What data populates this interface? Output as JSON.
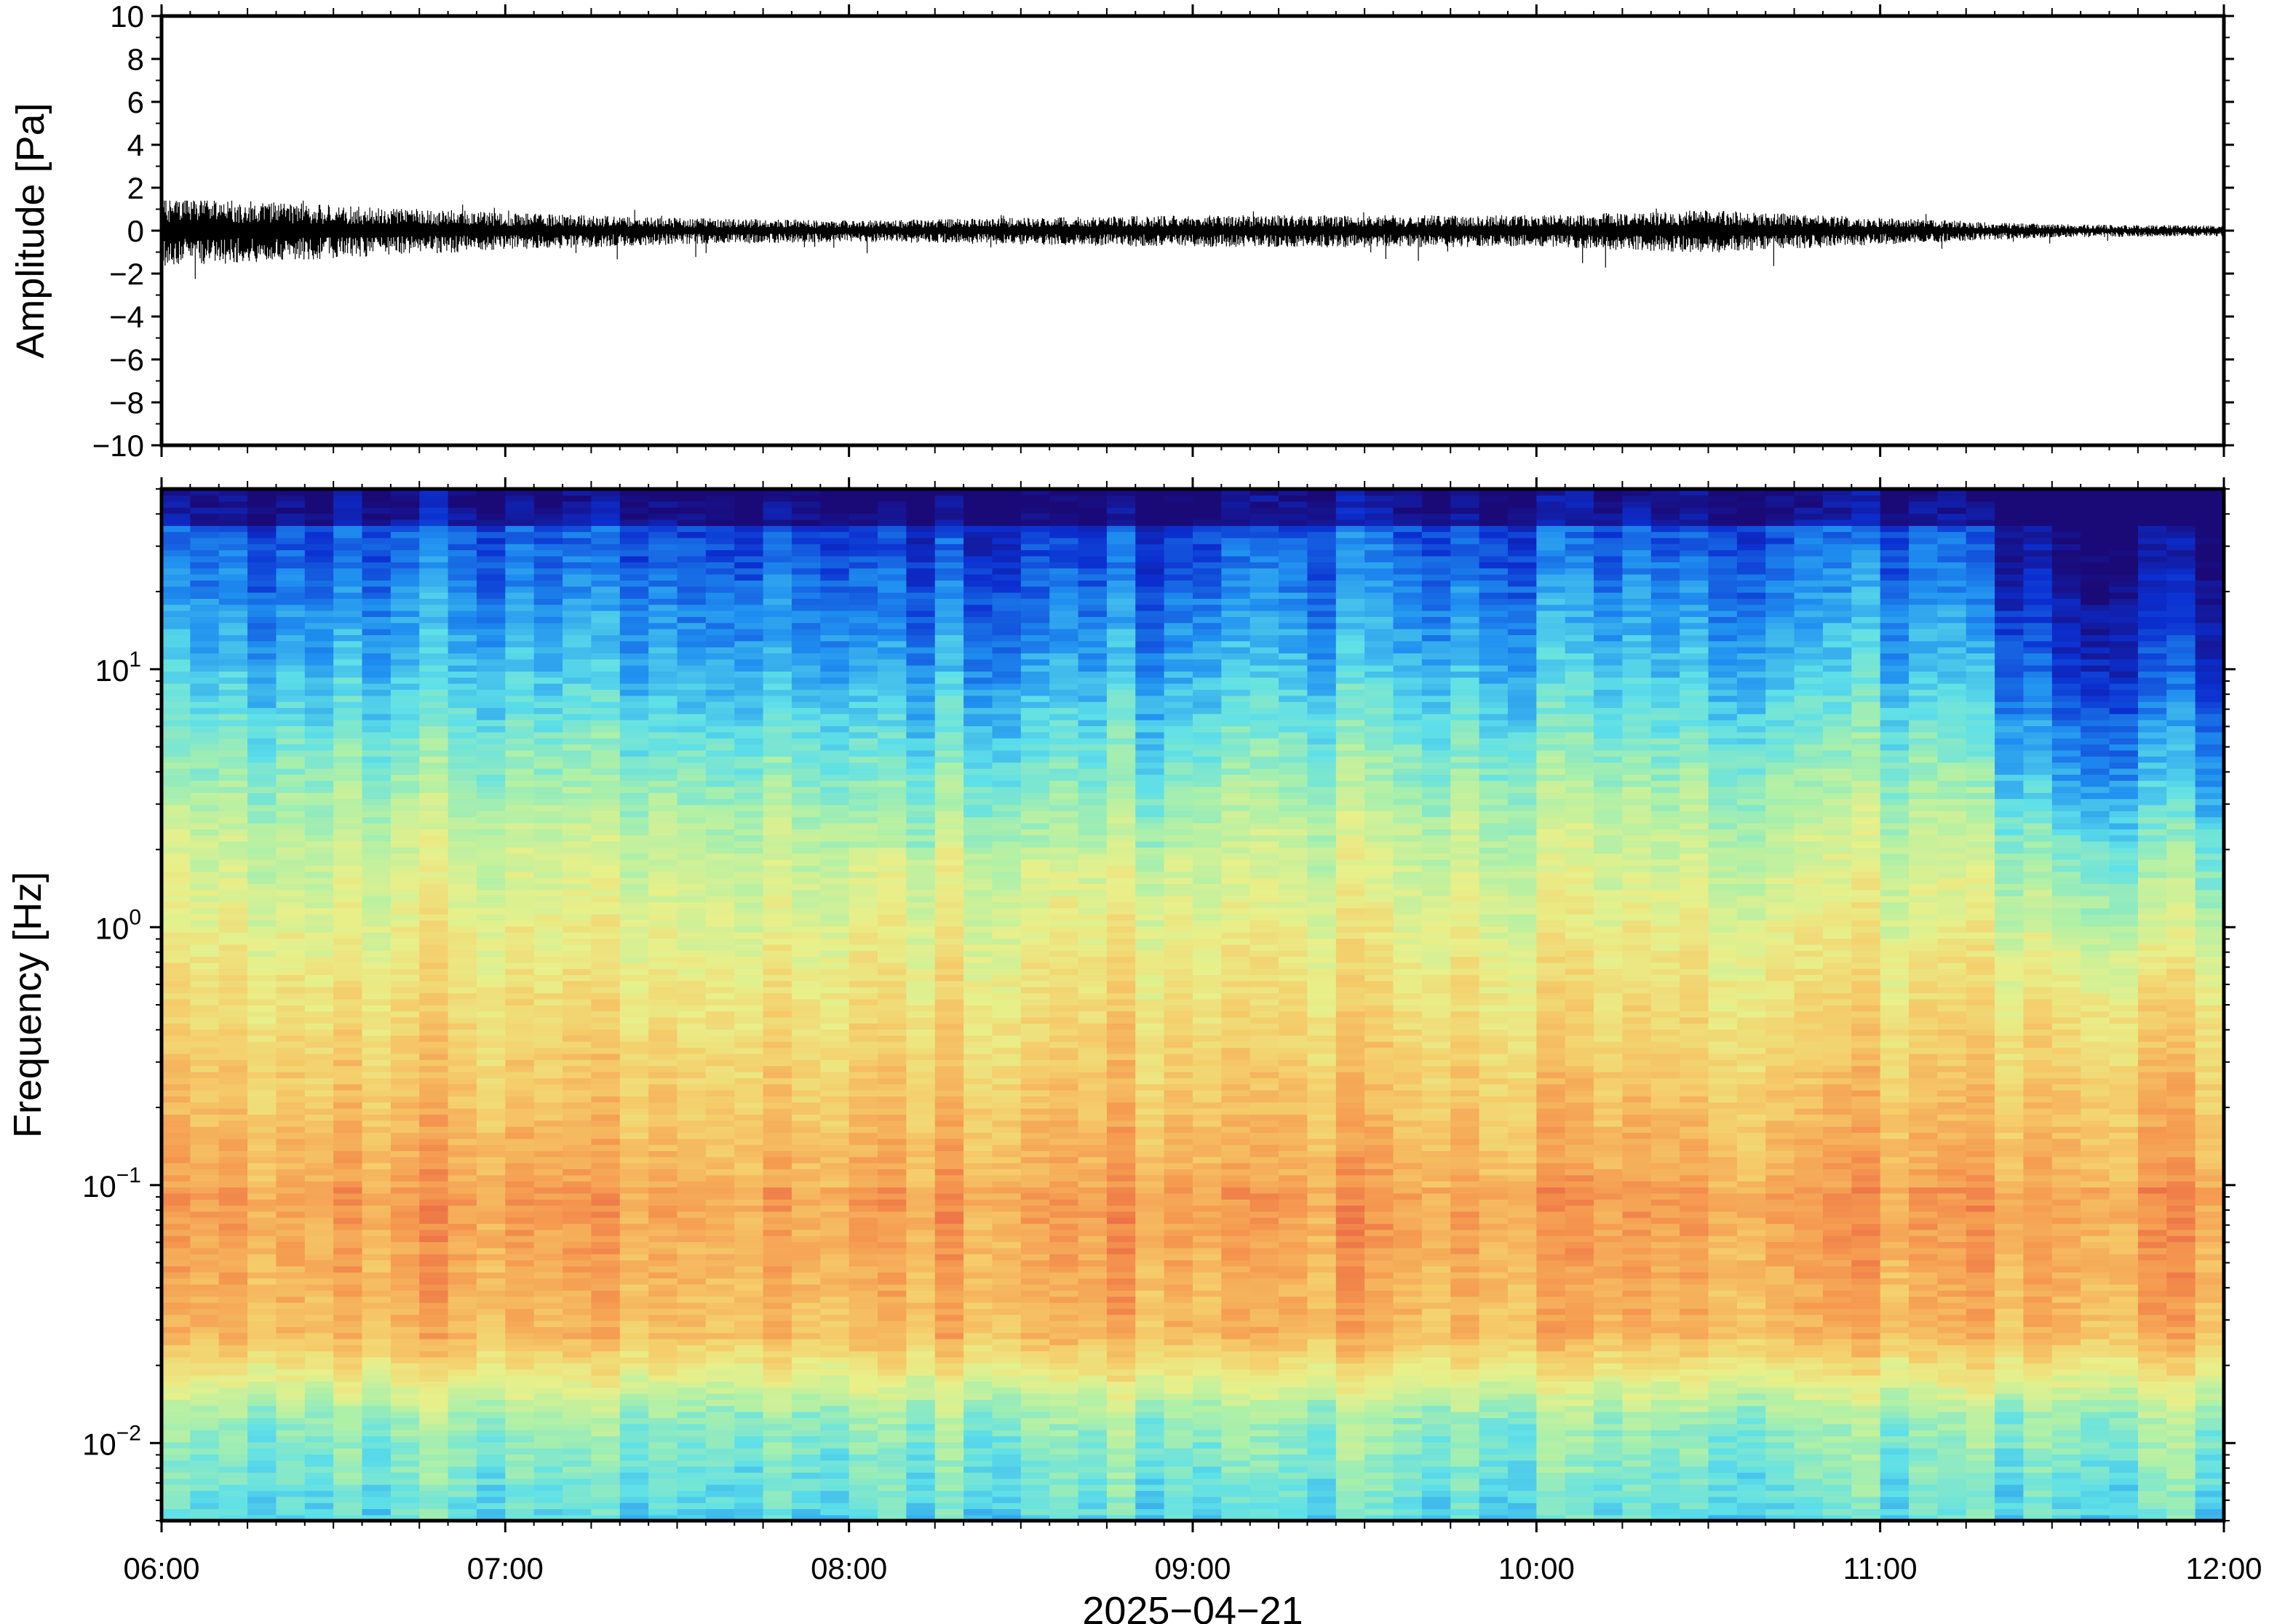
{
  "chart_data": [
    {
      "type": "line",
      "panel": "waveform",
      "ylabel": "Amplitude [Pa]",
      "ylim": [
        -10,
        10
      ],
      "y_ticks": [
        10,
        8,
        6,
        4,
        2,
        0,
        -2,
        -4,
        -6,
        -8,
        -10
      ],
      "y_tick_labels": [
        "10",
        "8",
        "6",
        "4",
        "2",
        "0",
        "−2",
        "−4",
        "−6",
        "−8",
        "−10"
      ],
      "xlim": [
        "06:00",
        "12:00"
      ],
      "series": [
        {
          "color": "#000000",
          "envelope_x": [
            "06:00",
            "06:30",
            "07:00",
            "07:30",
            "08:00",
            "08:30",
            "09:00",
            "09:30",
            "10:00",
            "10:30",
            "11:00",
            "11:30",
            "12:00"
          ],
          "envelope_amplitude": [
            1.3,
            1.0,
            0.7,
            0.5,
            0.4,
            0.5,
            0.6,
            0.6,
            0.6,
            0.8,
            0.5,
            0.25,
            0.2
          ],
          "peak_min": -2.5,
          "peak_max": 1.4
        }
      ]
    },
    {
      "type": "heatmap",
      "panel": "spectrogram",
      "ylabel": "Frequency [Hz]",
      "y_scale": "log",
      "ylim": [
        0.005,
        50
      ],
      "y_ticks": [
        0.01,
        0.1,
        1,
        10
      ],
      "y_tick_labels": [
        {
          "base": "10",
          "exp": "−2"
        },
        {
          "base": "10",
          "exp": "−1"
        },
        {
          "base": "10",
          "exp": "0"
        },
        {
          "base": "10",
          "exp": "1"
        }
      ],
      "xlim": [
        "06:00",
        "12:00"
      ],
      "x_tick_labels": [
        "06:00",
        "07:00",
        "08:00",
        "09:00",
        "10:00",
        "11:00",
        "12:00"
      ],
      "xlabel": "2025−04−21",
      "colormap": [
        "#1a0a78",
        "#0b2fd0",
        "#1f8ff0",
        "#5ee0e8",
        "#aef0a8",
        "#e8f08a",
        "#f5cc6a",
        "#f59a50",
        "#e85a40"
      ]
    }
  ]
}
